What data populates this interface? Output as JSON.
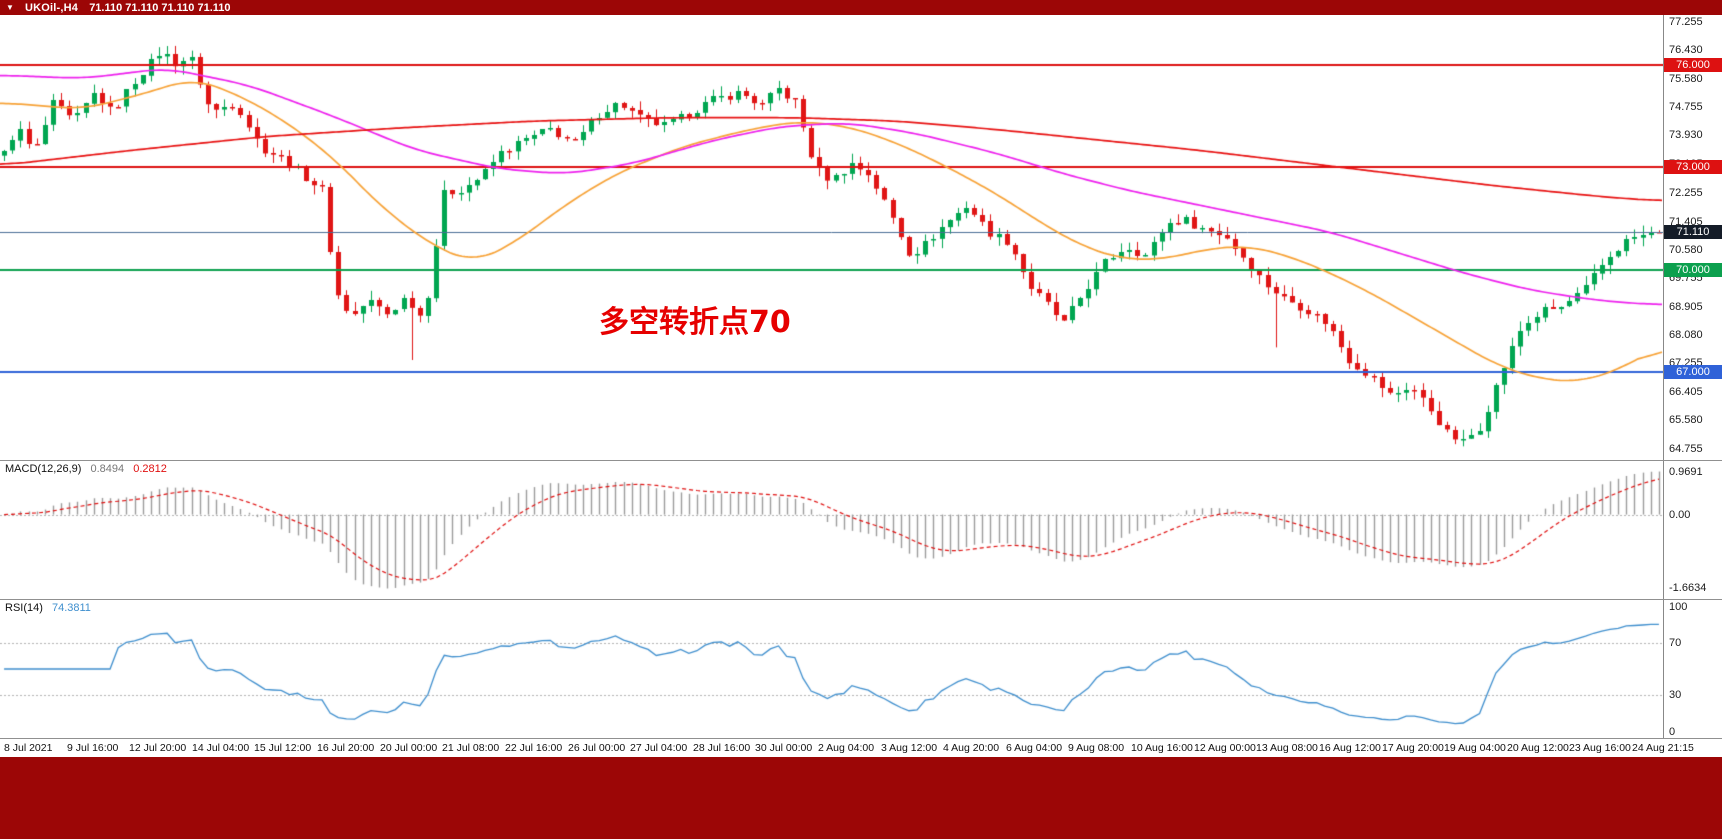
{
  "window": {
    "menu_icon": "▼",
    "symbol_period": "UKOil-,H4",
    "ohlc_text": "71.110 71.110 71.110 71.110"
  },
  "colors": {
    "chrome_bar": "#9c0606",
    "background": "#ffffff",
    "up_candle": "#00a651",
    "down_candle": "#e01515",
    "divider": "#909090",
    "axis_text": "#1c1c1c"
  },
  "chart_data": {
    "type": "candlestick",
    "symbol": "UKOil-",
    "timeframe": "H4",
    "candle_count": 204,
    "last_close": 71.11,
    "price_range": [
      64.42,
      77.46
    ],
    "y_axis_ticks": [
      {
        "label": "77.255",
        "value": 77.255
      },
      {
        "label": "76.430",
        "value": 76.43
      },
      {
        "label": "75.580",
        "value": 75.58
      },
      {
        "label": "74.755",
        "value": 74.755
      },
      {
        "label": "73.930",
        "value": 73.93
      },
      {
        "label": "73.105",
        "value": 73.105
      },
      {
        "label": "72.255",
        "value": 72.255
      },
      {
        "label": "71.405",
        "value": 71.405
      },
      {
        "label": "70.580",
        "value": 70.58
      },
      {
        "label": "69.755",
        "value": 69.755
      },
      {
        "label": "68.905",
        "value": 68.905
      },
      {
        "label": "68.080",
        "value": 68.08
      },
      {
        "label": "67.255",
        "value": 67.255
      },
      {
        "label": "66.405",
        "value": 66.405
      },
      {
        "label": "65.580",
        "value": 65.58
      },
      {
        "label": "64.755",
        "value": 64.755
      }
    ],
    "x_labels": [
      "8 Jul 2021",
      "9 Jul 16:00",
      "12 Jul 20:00",
      "14 Jul 04:00",
      "15 Jul 12:00",
      "16 Jul 20:00",
      "20 Jul 00:00",
      "21 Jul 08:00",
      "22 Jul 16:00",
      "26 Jul 00:00",
      "27 Jul 04:00",
      "28 Jul 16:00",
      "30 Jul 00:00",
      "2 Aug 04:00",
      "3 Aug 12:00",
      "4 Aug 20:00",
      "6 Aug 04:00",
      "9 Aug 08:00",
      "10 Aug 16:00",
      "12 Aug 00:00",
      "13 Aug 08:00",
      "16 Aug 12:00",
      "17 Aug 20:00",
      "19 Aug 04:00",
      "20 Aug 12:00",
      "23 Aug 16:00",
      "24 Aug 21:15"
    ],
    "horizontal_levels": [
      {
        "label": "76.000",
        "value": 76.0,
        "color": "#dd1111",
        "tag": "#dd1111",
        "width": 2
      },
      {
        "label": "73.000",
        "value": 73.0,
        "color": "#dd1111",
        "tag": "#dd1111",
        "width": 2
      },
      {
        "label": "71.110",
        "value": 71.11,
        "color": "#4a6e96",
        "tag": "#141c28",
        "width": 1
      },
      {
        "label": "70.000",
        "value": 70.0,
        "color": "#0ca04e",
        "tag": "#0ca04e",
        "width": 2
      },
      {
        "label": "67.000",
        "value": 67.0,
        "color": "#2f62d8",
        "tag": "#2f62d8",
        "width": 2
      }
    ],
    "price_path": [
      [
        0.0,
        73.4
      ],
      [
        0.008,
        74.2
      ],
      [
        0.018,
        73.4
      ],
      [
        0.03,
        74.9
      ],
      [
        0.042,
        74.3
      ],
      [
        0.055,
        75.2
      ],
      [
        0.065,
        74.6
      ],
      [
        0.08,
        75.6
      ],
      [
        0.095,
        76.4
      ],
      [
        0.105,
        76.0
      ],
      [
        0.112,
        76.3
      ],
      [
        0.125,
        74.6
      ],
      [
        0.14,
        74.9
      ],
      [
        0.155,
        73.6
      ],
      [
        0.17,
        73.2
      ],
      [
        0.185,
        72.6
      ],
      [
        0.193,
        72.3
      ],
      [
        0.2,
        69.4
      ],
      [
        0.21,
        68.6
      ],
      [
        0.22,
        69.1
      ],
      [
        0.232,
        68.7
      ],
      [
        0.243,
        69.2
      ],
      [
        0.252,
        68.6
      ],
      [
        0.258,
        69.6
      ],
      [
        0.265,
        72.2
      ],
      [
        0.278,
        72.4
      ],
      [
        0.29,
        72.8
      ],
      [
        0.3,
        73.4
      ],
      [
        0.315,
        73.8
      ],
      [
        0.33,
        74.1
      ],
      [
        0.345,
        73.7
      ],
      [
        0.36,
        74.6
      ],
      [
        0.372,
        74.9
      ],
      [
        0.385,
        74.4
      ],
      [
        0.4,
        74.2
      ],
      [
        0.415,
        74.6
      ],
      [
        0.43,
        75.0
      ],
      [
        0.445,
        75.2
      ],
      [
        0.458,
        74.8
      ],
      [
        0.468,
        75.3
      ],
      [
        0.478,
        74.9
      ],
      [
        0.49,
        73.0
      ],
      [
        0.5,
        72.6
      ],
      [
        0.512,
        73.1
      ],
      [
        0.523,
        72.8
      ],
      [
        0.535,
        71.7
      ],
      [
        0.548,
        70.4
      ],
      [
        0.558,
        70.8
      ],
      [
        0.568,
        71.3
      ],
      [
        0.582,
        71.9
      ],
      [
        0.595,
        71.1
      ],
      [
        0.608,
        70.8
      ],
      [
        0.62,
        69.5
      ],
      [
        0.632,
        68.9
      ],
      [
        0.64,
        68.4
      ],
      [
        0.652,
        69.3
      ],
      [
        0.665,
        70.2
      ],
      [
        0.678,
        70.7
      ],
      [
        0.69,
        70.4
      ],
      [
        0.702,
        71.3
      ],
      [
        0.712,
        71.5
      ],
      [
        0.725,
        71.2
      ],
      [
        0.738,
        71.0
      ],
      [
        0.75,
        70.3
      ],
      [
        0.762,
        69.6
      ],
      [
        0.772,
        69.2
      ],
      [
        0.785,
        68.9
      ],
      [
        0.8,
        68.4
      ],
      [
        0.812,
        67.4
      ],
      [
        0.825,
        66.9
      ],
      [
        0.838,
        66.3
      ],
      [
        0.85,
        66.6
      ],
      [
        0.862,
        65.9
      ],
      [
        0.872,
        65.2
      ],
      [
        0.882,
        64.95
      ],
      [
        0.892,
        65.4
      ],
      [
        0.905,
        67.0
      ],
      [
        0.917,
        68.3
      ],
      [
        0.93,
        68.8
      ],
      [
        0.942,
        68.9
      ],
      [
        0.955,
        69.4
      ],
      [
        0.968,
        70.3
      ],
      [
        0.982,
        70.9
      ],
      [
        1.0,
        71.11
      ]
    ],
    "spikes": [
      {
        "frac": 0.247,
        "low": 67.35
      },
      {
        "frac": 0.768,
        "low": 67.72
      },
      {
        "frac": 0.882,
        "low": 64.82
      },
      {
        "frac": 0.1,
        "high": 76.55
      }
    ],
    "moving_averages": [
      {
        "name": "ma-fast-orange",
        "color": "#f7a338",
        "path": [
          [
            0,
            74.9
          ],
          [
            0.05,
            74.7
          ],
          [
            0.09,
            75.2
          ],
          [
            0.115,
            75.6
          ],
          [
            0.14,
            75.2
          ],
          [
            0.17,
            74.4
          ],
          [
            0.2,
            73.3
          ],
          [
            0.23,
            71.8
          ],
          [
            0.26,
            70.7
          ],
          [
            0.285,
            70.2
          ],
          [
            0.31,
            70.8
          ],
          [
            0.34,
            71.9
          ],
          [
            0.37,
            72.8
          ],
          [
            0.41,
            73.6
          ],
          [
            0.45,
            74.1
          ],
          [
            0.48,
            74.35
          ],
          [
            0.51,
            74.2
          ],
          [
            0.54,
            73.7
          ],
          [
            0.57,
            73.0
          ],
          [
            0.6,
            72.2
          ],
          [
            0.625,
            71.4
          ],
          [
            0.65,
            70.7
          ],
          [
            0.675,
            70.3
          ],
          [
            0.7,
            70.3
          ],
          [
            0.725,
            70.6
          ],
          [
            0.75,
            70.7
          ],
          [
            0.775,
            70.4
          ],
          [
            0.8,
            69.9
          ],
          [
            0.825,
            69.3
          ],
          [
            0.85,
            68.6
          ],
          [
            0.875,
            67.9
          ],
          [
            0.9,
            67.2
          ],
          [
            0.925,
            66.8
          ],
          [
            0.95,
            66.7
          ],
          [
            0.975,
            67.1
          ],
          [
            1.0,
            67.8
          ]
        ]
      },
      {
        "name": "ma-mid-magenta",
        "color": "#ee22ee",
        "path": [
          [
            0,
            75.7
          ],
          [
            0.05,
            75.6
          ],
          [
            0.1,
            75.9
          ],
          [
            0.15,
            75.4
          ],
          [
            0.2,
            74.5
          ],
          [
            0.25,
            73.5
          ],
          [
            0.3,
            72.95
          ],
          [
            0.34,
            72.8
          ],
          [
            0.38,
            73.1
          ],
          [
            0.43,
            73.8
          ],
          [
            0.47,
            74.2
          ],
          [
            0.51,
            74.3
          ],
          [
            0.55,
            74.0
          ],
          [
            0.6,
            73.4
          ],
          [
            0.64,
            72.8
          ],
          [
            0.68,
            72.3
          ],
          [
            0.72,
            71.9
          ],
          [
            0.76,
            71.5
          ],
          [
            0.8,
            71.1
          ],
          [
            0.84,
            70.5
          ],
          [
            0.88,
            69.9
          ],
          [
            0.92,
            69.4
          ],
          [
            0.96,
            69.1
          ],
          [
            1.0,
            68.95
          ]
        ]
      },
      {
        "name": "ma-slow-red",
        "color": "#e81212",
        "path": [
          [
            0,
            73.05
          ],
          [
            0.08,
            73.5
          ],
          [
            0.16,
            73.9
          ],
          [
            0.24,
            74.15
          ],
          [
            0.32,
            74.35
          ],
          [
            0.4,
            74.45
          ],
          [
            0.48,
            74.45
          ],
          [
            0.54,
            74.35
          ],
          [
            0.6,
            74.1
          ],
          [
            0.66,
            73.8
          ],
          [
            0.72,
            73.5
          ],
          [
            0.78,
            73.15
          ],
          [
            0.84,
            72.8
          ],
          [
            0.9,
            72.45
          ],
          [
            0.96,
            72.15
          ],
          [
            1.0,
            72.0
          ]
        ]
      }
    ],
    "annotation": {
      "text": "多空转折点70",
      "color": "#e60000",
      "x_frac": 0.36,
      "price": 68.6
    },
    "indicators": [
      {
        "type": "MACD",
        "label": "MACD(12,26,9)",
        "value_main": "0.8494",
        "value_signal": "0.2812",
        "params": [
          12,
          26,
          9
        ],
        "range": [
          -1.6634,
          0.9691
        ],
        "axis_labels": [
          {
            "label": "0.9691",
            "value": 0.9691
          },
          {
            "label": "0.00",
            "value": 0
          },
          {
            "label": "-1.6634",
            "value": -1.6634
          }
        ],
        "histogram_color": "#9b9b9b",
        "signal_color": "#e01010"
      },
      {
        "type": "RSI",
        "label": "RSI(14)",
        "value": "74.3811",
        "period": 14,
        "range": [
          0,
          100
        ],
        "levels": [
          70,
          30
        ],
        "axis_labels": [
          {
            "label": "100",
            "value": 100
          },
          {
            "label": "70",
            "value": 70
          },
          {
            "label": "30",
            "value": 30
          },
          {
            "label": "0",
            "value": 0
          }
        ],
        "line_color": "#3f8fce"
      }
    ]
  }
}
